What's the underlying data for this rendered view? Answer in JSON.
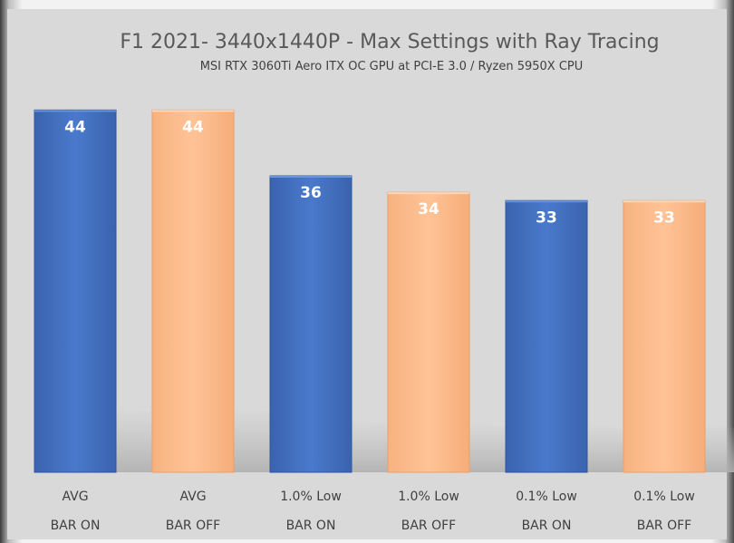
{
  "chart_data": {
    "type": "bar",
    "title": "F1 2021- 3440x1440P - Max Settings with Ray Tracing",
    "subtitle": "MSI RTX 3060Ti Aero ITX OC GPU at PCI-E 3.0 / Ryzen 5950X CPU",
    "categories": [
      [
        "AVG",
        "BAR ON"
      ],
      [
        "AVG",
        "BAR OFF"
      ],
      [
        "1.0% Low",
        "BAR ON"
      ],
      [
        "1.0% Low",
        "BAR OFF"
      ],
      [
        "0.1% Low",
        "BAR ON"
      ],
      [
        "0.1% Low",
        "BAR OFF"
      ]
    ],
    "values": [
      44,
      44,
      36,
      34,
      33,
      33
    ],
    "value_labels": [
      "44",
      "44",
      "36",
      "34",
      "33",
      "33"
    ],
    "colors": [
      "#4472c4",
      "#ffbe8c",
      "#4472c4",
      "#ffbe8c",
      "#4472c4",
      "#ffbe8c"
    ],
    "ylim": [
      0,
      48
    ],
    "grid": false,
    "legend": "none",
    "xlabel": "",
    "ylabel": ""
  }
}
